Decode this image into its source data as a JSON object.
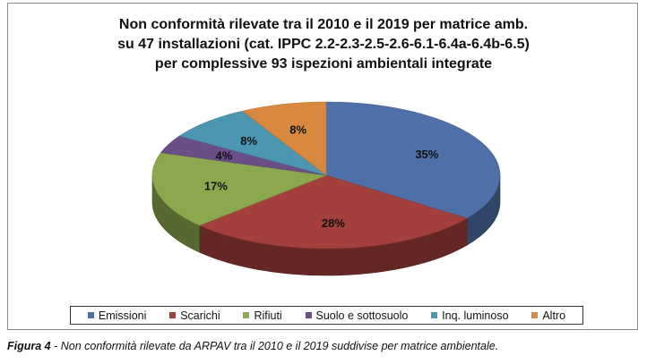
{
  "colors": {
    "Emissioni": "#4F6FA8",
    "Scarichi": "#A33F3C",
    "Rifiuti": "#8CA84D",
    "Suolo e sottosuolo": "#6A4E88",
    "Inq. luminoso": "#4B97B1",
    "Altro": "#D9883F"
  },
  "chart_data": {
    "type": "pie",
    "title": [
      "Non conformità rilevate tra il 2010 e il 2019 per matrice amb.",
      "su 47 installazioni (cat. IPPC 2.2-2.3-2.5-2.6-6.1-6.4a-6.4b-6.5)",
      "per complessive 93 ispezioni ambientali integrate"
    ],
    "categories": [
      "Emissioni",
      "Scarichi",
      "Rifiuti",
      "Suolo e sottosuolo",
      "Inq. luminoso",
      "Altro"
    ],
    "values": [
      35,
      28,
      17,
      4,
      8,
      8
    ],
    "data_labels": [
      "35%",
      "28%",
      "17%",
      "4%",
      "8%",
      "8%"
    ],
    "style": "3d",
    "legend_position": "bottom"
  },
  "caption": {
    "prefix": "Figura 4",
    "text": " - Non conformità rilevate da ARPAV tra il 2010 e il 2019 suddivise per matrice ambientale."
  }
}
